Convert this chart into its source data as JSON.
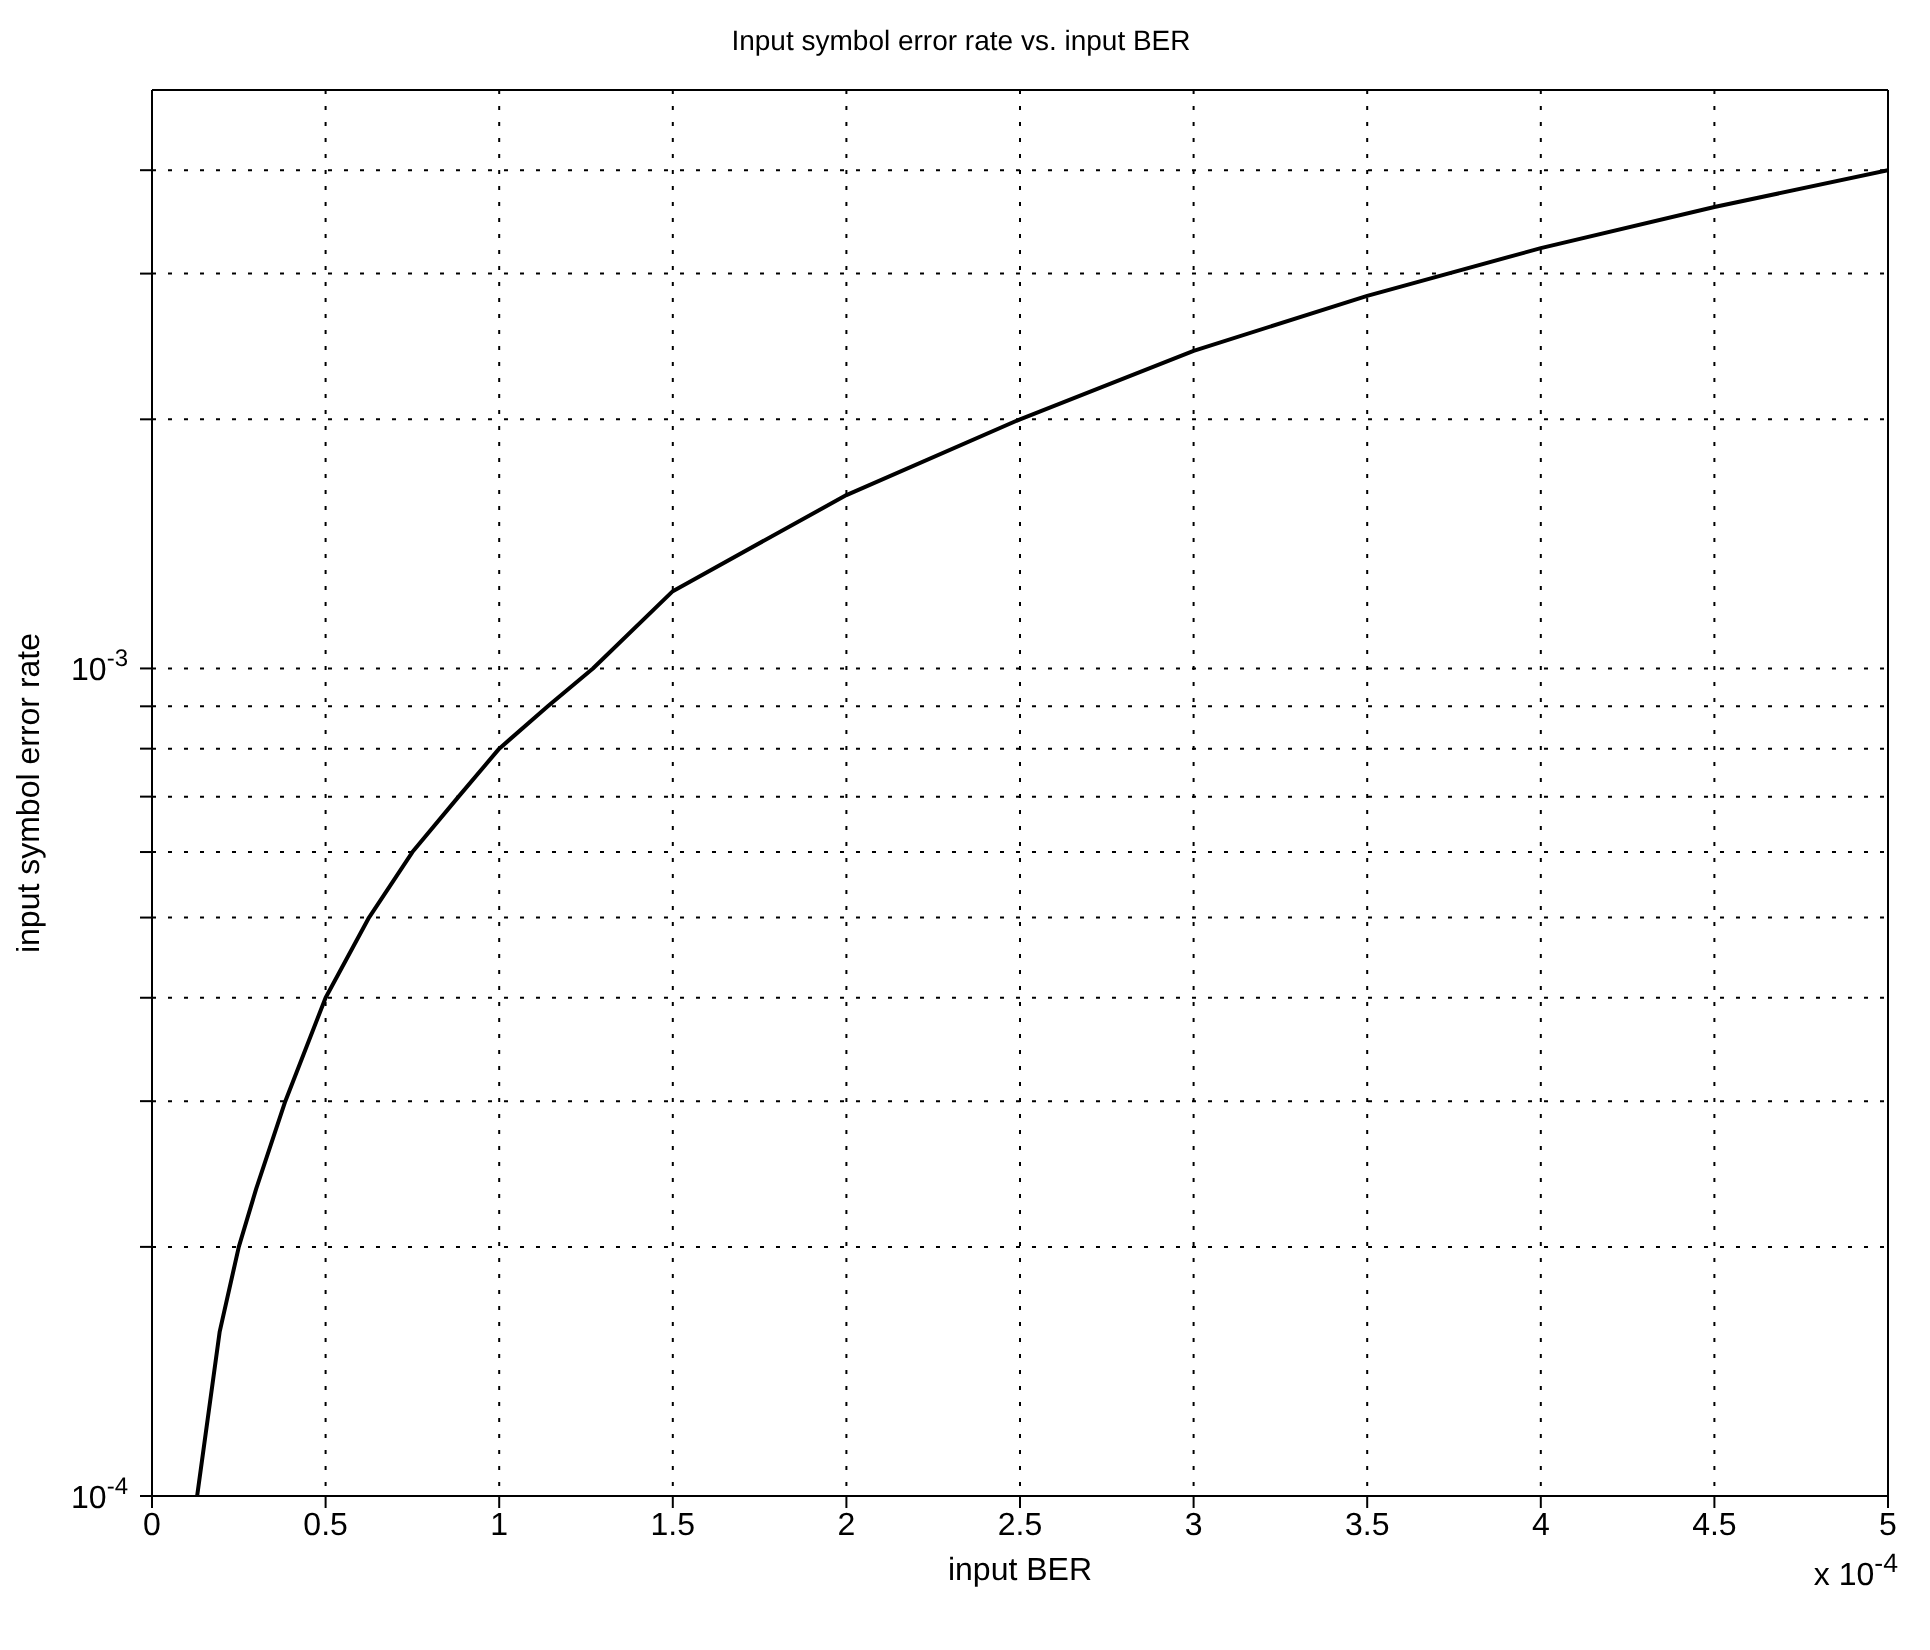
{
  "chart_data": {
    "type": "line",
    "title": "Input symbol error rate vs. input BER",
    "xlabel": "input BER",
    "ylabel": "input symbol error rate",
    "annotations": [
      "x 10$^{-4}$"
    ],
    "log": "y",
    "grid": true,
    "marker": "none",
    "line_style": "solid",
    "xlim": [
      0,
      5
    ],
    "xticks": [
      0,
      0.5,
      1,
      1.5,
      2,
      2.5,
      3,
      3.5,
      4,
      4.5,
      5
    ],
    "ylim": [
      0.0001,
      0.005
    ],
    "yticks": [
      {
        "value": 0.0001,
        "label": "10$^{-4}$"
      },
      {
        "value": 0.0002,
        "label": null
      },
      {
        "value": 0.0003,
        "label": null
      },
      {
        "value": 0.0004,
        "label": null
      },
      {
        "value": 0.0005,
        "label": null
      },
      {
        "value": 0.0006,
        "label": null
      },
      {
        "value": 0.0007,
        "label": null
      },
      {
        "value": 0.0008,
        "label": null
      },
      {
        "value": 0.0009,
        "label": null
      },
      {
        "value": 0.001,
        "label": "10$^{-3}$"
      },
      {
        "value": 0.002,
        "label": null
      },
      {
        "value": 0.003,
        "label": null
      },
      {
        "value": 0.004,
        "label": null
      }
    ],
    "series": [
      {
        "color": "#000000",
        "x": [
          0.13,
          0.195,
          0.25,
          0.3,
          0.384,
          0.5,
          0.625,
          0.75,
          0.883,
          1.0,
          1.14,
          1.27,
          1.5,
          2.0,
          2.5,
          3.0,
          3.5,
          4.0,
          4.5,
          5.0
        ],
        "values": [
          0.0001,
          0.000158,
          0.0002,
          0.000235,
          0.0003,
          0.0004,
          0.0005,
          0.0006,
          0.0007,
          0.0008,
          0.0009,
          0.001,
          0.00124,
          0.00162,
          0.002,
          0.00242,
          0.00282,
          0.00322,
          0.00361,
          0.004
        ]
      }
    ]
  }
}
